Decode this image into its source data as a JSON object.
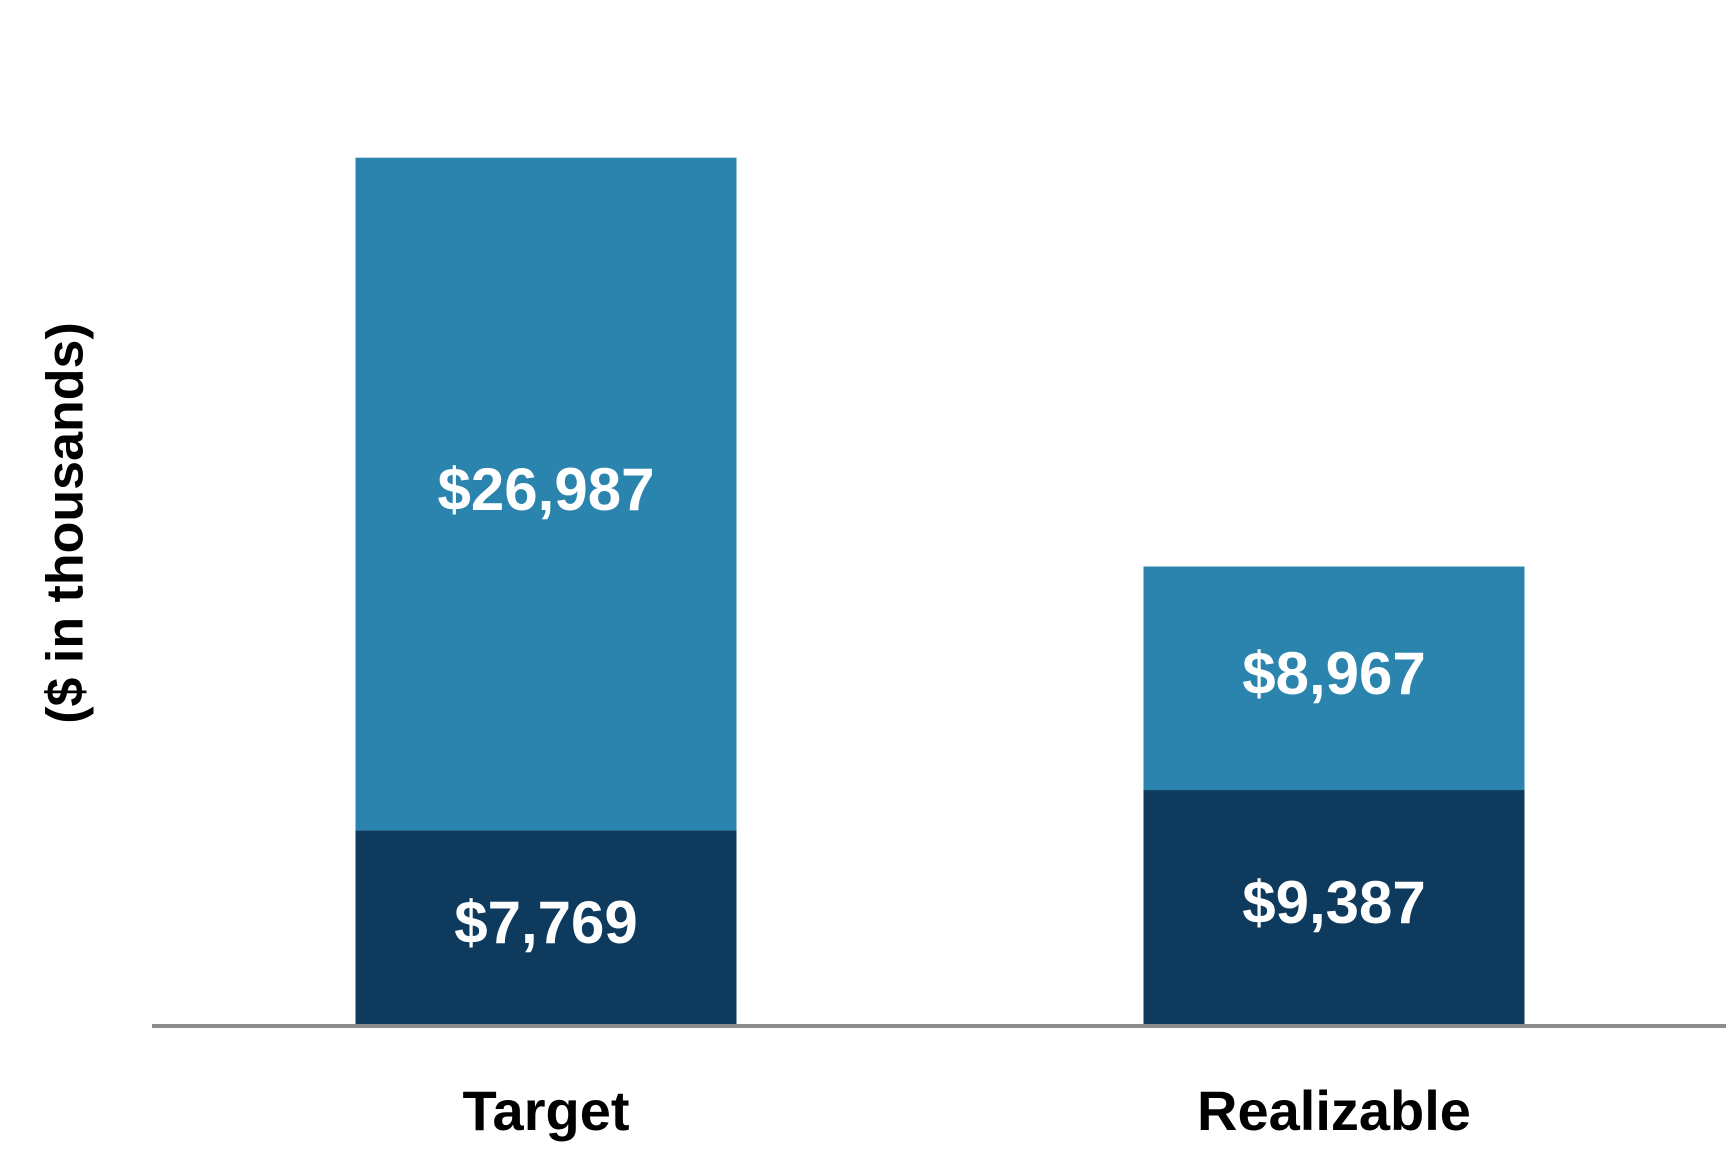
{
  "chart_data": {
    "type": "stacked_bar",
    "y_label": "($ in thousands)",
    "categories": [
      "Target",
      "Realizable"
    ],
    "series": [
      {
        "color": "#0e3a5e",
        "values": [
          7769,
          9387
        ],
        "value_labels": [
          "$7,769",
          "$9,387"
        ]
      },
      {
        "color": "#2a84ae",
        "values": [
          26987,
          8967
        ],
        "value_labels": [
          "$26,987",
          "$8,967"
        ]
      }
    ],
    "ylim": [
      0,
      40000
    ]
  }
}
